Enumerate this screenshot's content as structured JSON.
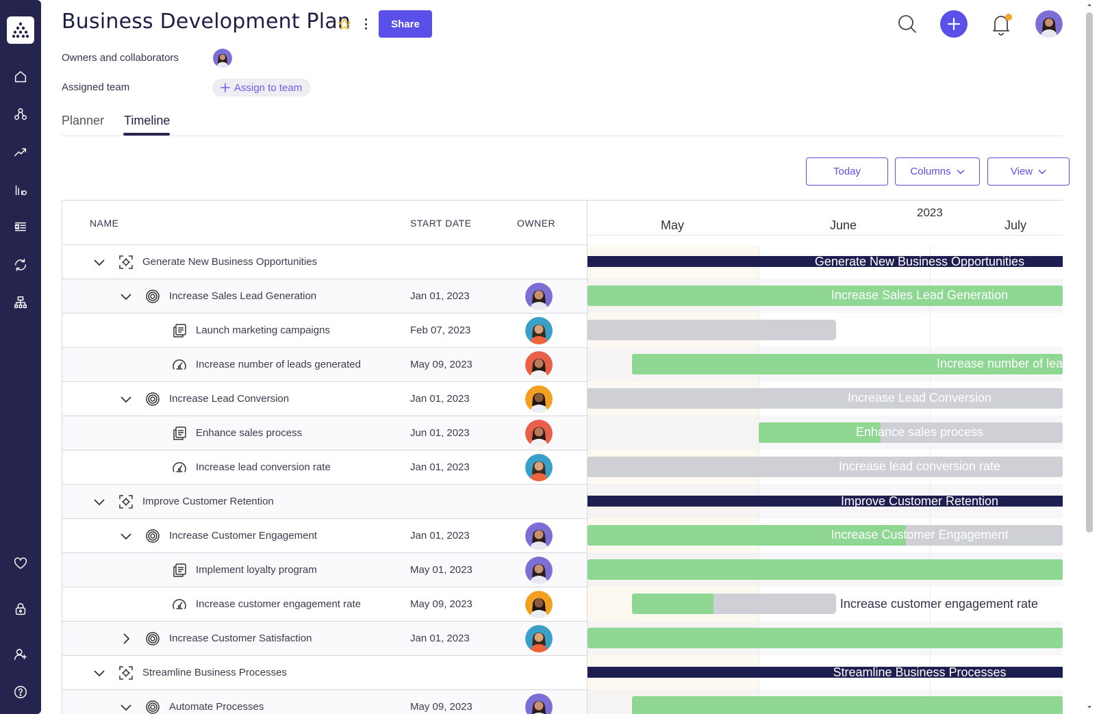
{
  "header": {
    "title": "Business Development Plan",
    "share_label": "Share",
    "owners_label": "Owners and collaborators",
    "team_label": "Assigned team",
    "assign_label": "Assign to team"
  },
  "tabs": [
    {
      "label": "Planner",
      "active": false
    },
    {
      "label": "Timeline",
      "active": true
    }
  ],
  "controls": {
    "today": "Today",
    "columns": "Columns",
    "view": "View"
  },
  "grid": {
    "columns": [
      "NAME",
      "START DATE",
      "OWNER"
    ]
  },
  "rows": [
    {
      "name": "Generate New Business Opportunities",
      "level": 0,
      "type": "objective",
      "expanded": true,
      "date": "",
      "owner": ""
    },
    {
      "name": "Increase Sales Lead Generation",
      "level": 1,
      "type": "goal",
      "expanded": true,
      "date": "Jan 01, 2023",
      "owner": "woman-purple"
    },
    {
      "name": "Launch marketing campaigns",
      "level": 2,
      "type": "task",
      "date": "Feb 07, 2023",
      "owner": "man-blue"
    },
    {
      "name": "Increase number of leads generated",
      "level": 2,
      "type": "kpi",
      "date": "May 09, 2023",
      "owner": "woman-red"
    },
    {
      "name": "Increase Lead Conversion",
      "level": 1,
      "type": "goal",
      "expanded": true,
      "date": "Jan 01, 2023",
      "owner": "man-orange"
    },
    {
      "name": "Enhance sales process",
      "level": 2,
      "type": "task",
      "date": "Jun 01, 2023",
      "owner": "woman-red"
    },
    {
      "name": "Increase lead conversion rate",
      "level": 2,
      "type": "kpi",
      "date": "Jan 01, 2023",
      "owner": "man-blue"
    },
    {
      "name": "Improve Customer Retention",
      "level": 0,
      "type": "objective",
      "expanded": true,
      "date": "",
      "owner": ""
    },
    {
      "name": "Increase Customer Engagement",
      "level": 1,
      "type": "goal",
      "expanded": true,
      "date": "Jan 01, 2023",
      "owner": "woman-purple"
    },
    {
      "name": "Implement loyalty program",
      "level": 2,
      "type": "task",
      "date": "May 01, 2023",
      "owner": "woman-purple"
    },
    {
      "name": "Increase customer engagement rate",
      "level": 2,
      "type": "kpi",
      "date": "May 09, 2023",
      "owner": "man-orange"
    },
    {
      "name": "Increase Customer Satisfaction",
      "level": 1,
      "type": "goal",
      "expanded": false,
      "date": "Jan 01, 2023",
      "owner": "man-blue"
    },
    {
      "name": "Streamline Business Processes",
      "level": 0,
      "type": "objective",
      "expanded": true,
      "date": "",
      "owner": ""
    },
    {
      "name": "Automate Processes",
      "level": 1,
      "type": "goal",
      "expanded": true,
      "date": "May 09, 2023",
      "owner": "woman-purple"
    }
  ],
  "timeline": {
    "year": "2023",
    "months": [
      "May",
      "June",
      "July"
    ],
    "bars": [
      {
        "row": 0,
        "kind": "objective",
        "label": "Generate New Business Opportunities",
        "start_date": "2023-01-01",
        "end_date": "2023-12-31",
        "progress": 0
      },
      {
        "row": 1,
        "kind": "bar",
        "label": "Increase Sales Lead Generation",
        "start_date": "2023-01-01",
        "end_date": "2023-12-31",
        "progress": 1.0
      },
      {
        "row": 2,
        "kind": "bar",
        "label": "",
        "start_date": "2023-02-07",
        "end_date": "2023-06-15",
        "progress": 0
      },
      {
        "row": 3,
        "kind": "bar",
        "label": "Increase number of leads",
        "start_date": "2023-05-09",
        "end_date": "2023-12-31",
        "progress": 1.0
      },
      {
        "row": 4,
        "kind": "bar",
        "label": "Increase Lead Conversion",
        "start_date": "2023-01-01",
        "end_date": "2023-12-31",
        "progress": 0
      },
      {
        "row": 5,
        "kind": "bar",
        "label": "Enhance sales process",
        "start_date": "2023-06-01",
        "end_date": "2023-12-31",
        "progress": 0.4
      },
      {
        "row": 6,
        "kind": "bar",
        "label": "Increase lead conversion rate",
        "start_date": "2023-01-01",
        "end_date": "2023-12-31",
        "progress": 0
      },
      {
        "row": 7,
        "kind": "objective",
        "label": "Improve Customer Retention",
        "start_date": "2023-01-01",
        "end_date": "2023-12-31",
        "progress": 0
      },
      {
        "row": 8,
        "kind": "bar",
        "label": "Increase Customer Engagement",
        "start_date": "2023-01-01",
        "end_date": "2023-12-31",
        "progress": 0.67
      },
      {
        "row": 9,
        "kind": "bar",
        "label": "",
        "start_date": "2023-05-01",
        "end_date": "2023-12-31",
        "progress": 1.0
      },
      {
        "row": 10,
        "kind": "bar",
        "label": "Increase customer engagement rate",
        "start_date": "2023-05-09",
        "end_date": "2023-06-15",
        "progress": 0.4,
        "label_outside": true
      },
      {
        "row": 11,
        "kind": "bar",
        "label": "",
        "start_date": "2023-01-01",
        "end_date": "2023-12-31",
        "progress": 1.0
      },
      {
        "row": 12,
        "kind": "objective",
        "label": "Streamline Business Processes",
        "start_date": "2023-01-01",
        "end_date": "2023-12-31",
        "progress": 0
      },
      {
        "row": 13,
        "kind": "bar",
        "label": "",
        "start_date": "2023-05-09",
        "end_date": "2023-12-31",
        "progress": 1.0
      }
    ]
  },
  "colors": {
    "sidebar": "#24244f",
    "accent": "#5a4fe8",
    "progress_green": "#8ed893",
    "bar_grey": "#cfcfd6",
    "objective_bar": "#1e1e50",
    "notification_dot": "#f5a623"
  },
  "icons": {
    "sidebar": [
      "home-icon",
      "network-icon",
      "trend-icon",
      "bar-chart-icon",
      "list-icon",
      "sync-icon",
      "hierarchy-icon",
      "heart-icon",
      "lock-icon",
      "add-user-icon",
      "help-icon"
    ]
  }
}
